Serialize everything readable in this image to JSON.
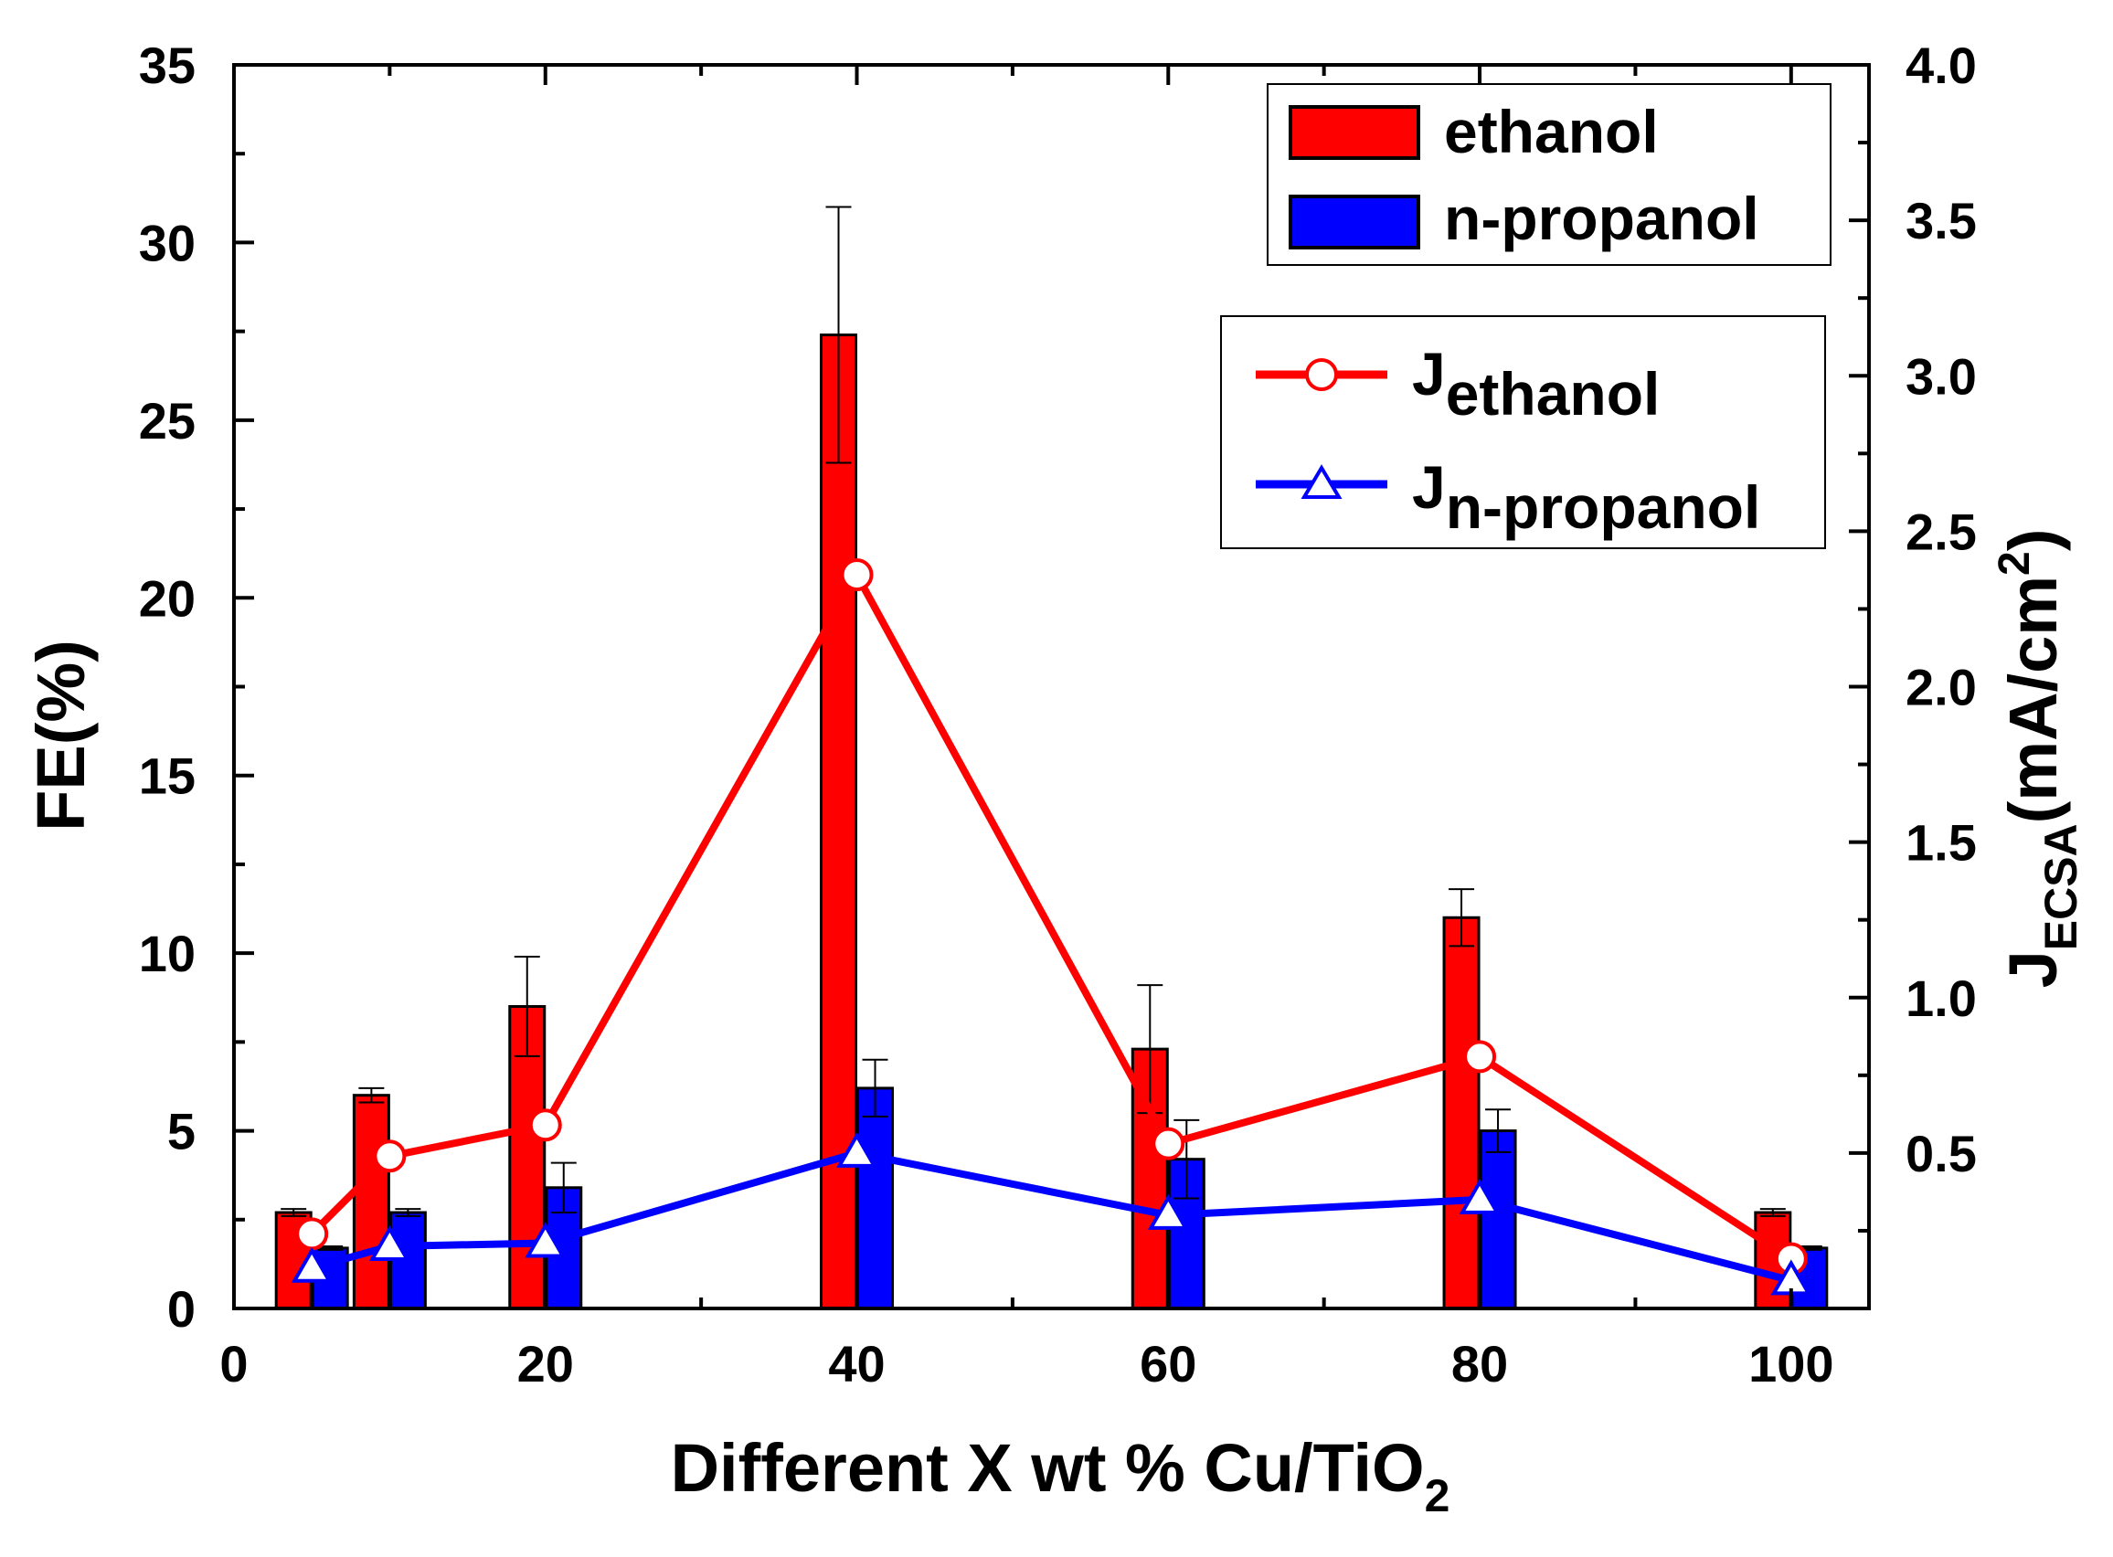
{
  "chart_data": {
    "type": "bar",
    "xlabel": {
      "main": "Different X wt % Cu/TiO",
      "sub": "2"
    },
    "ylabel_left": "FE(%)",
    "ylabel_right": {
      "main": "J",
      "sub": "ECSA",
      "unit": "(mA/cm",
      "sup": "2",
      "close": ")"
    },
    "xlim": [
      0,
      105
    ],
    "ylim_left": [
      0,
      35
    ],
    "ylim_right": [
      0,
      4.0
    ],
    "x_ticks": [
      0,
      20,
      40,
      60,
      80,
      100
    ],
    "y_ticks_left": [
      0,
      5,
      10,
      15,
      20,
      25,
      30,
      35
    ],
    "y_ticks_right": [
      "0.5",
      "1.0",
      "1.5",
      "2.0",
      "2.5",
      "3.0",
      "3.5",
      "4.0"
    ],
    "categories": [
      5,
      10,
      20,
      40,
      60,
      80,
      100
    ],
    "bar_series": [
      {
        "name": "ethanol",
        "color": "#ff0000",
        "values": [
          2.7,
          6.0,
          8.5,
          27.4,
          7.3,
          11.0,
          2.7
        ],
        "errors": [
          0.1,
          0.2,
          1.4,
          3.6,
          1.8,
          0.8,
          0.1
        ]
      },
      {
        "name": "n-propanol",
        "color": "#0000ff",
        "values": [
          1.7,
          2.7,
          3.4,
          6.2,
          4.2,
          5.0,
          1.7
        ],
        "errors": [
          0.05,
          0.1,
          0.7,
          0.8,
          1.1,
          0.6,
          0.05
        ]
      }
    ],
    "line_series": [
      {
        "name": "J",
        "sub": "ethanol",
        "color": "#ff0000",
        "marker": "circle",
        "x": [
          5,
          10,
          20,
          40,
          60,
          80,
          100
        ],
        "values": [
          0.24,
          0.49,
          0.59,
          2.36,
          0.53,
          0.81,
          0.16
        ]
      },
      {
        "name": "J",
        "sub": "n-propanol",
        "color": "#0000ff",
        "marker": "triangle",
        "x": [
          5,
          10,
          20,
          40,
          60,
          80,
          100
        ],
        "values": [
          0.13,
          0.2,
          0.21,
          0.5,
          0.3,
          0.35,
          0.09
        ]
      }
    ],
    "legend_position": "top-right"
  }
}
